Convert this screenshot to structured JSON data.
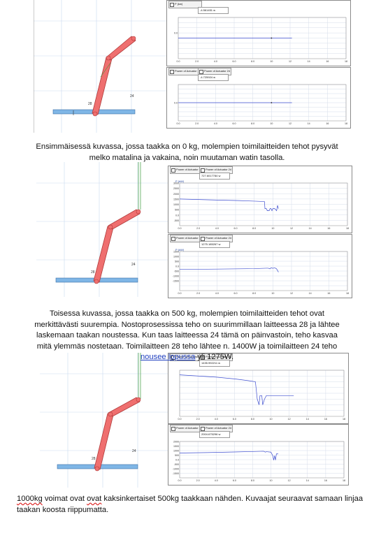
{
  "figures": [
    {
      "mechanism": {
        "labels": {
          "a": "24",
          "b": "28"
        },
        "show_vertical_guide": false,
        "load_kg": 0
      },
      "panels": [
        {
          "tabs": [
            "P (kw)"
          ],
          "value": "-4.561451 w",
          "y_ticks": [
            "",
            "",
            "",
            "0.0",
            "",
            "",
            "",
            ""
          ],
          "x_ticks": [
            "0.0",
            "2.0",
            "4.0",
            "6.0",
            "8.0",
            "10",
            "12",
            "14",
            "16",
            "18"
          ],
          "series": {
            "x": [
              0,
              12.2
            ],
            "y": [
              0,
              0
            ],
            "marker_x": 10
          },
          "ylim": [
            -4,
            4
          ],
          "xlim": [
            0,
            18
          ]
        },
        {
          "tabs": [
            "Power of Actuator 24",
            "Power of Actuator 24"
          ],
          "value": "-4.725924 w",
          "y_ticks": [
            "",
            "",
            "",
            "",
            "0.0",
            "",
            "",
            ""
          ],
          "x_ticks": [
            "0.0",
            "2.0",
            "4.0",
            "6.0",
            "8.0",
            "10",
            "12",
            "14",
            "16",
            "18"
          ],
          "series": {
            "x": [
              0,
              12.2
            ],
            "y": [
              0,
              0
            ],
            "marker_x": 10
          },
          "ylim": [
            -4,
            4
          ],
          "xlim": [
            0,
            18
          ]
        }
      ]
    },
    {
      "mechanism": {
        "labels": {
          "a": "24",
          "b": "28"
        },
        "show_vertical_guide": true,
        "load_kg": 500
      },
      "panels": [
        {
          "tabs": [
            "Power of Actuator 24",
            "Power of Actuator 24"
          ],
          "ylabel": "P (kW)",
          "value": "727.6017784 w",
          "y_ticks": [
            "3000",
            "2500",
            "2000",
            "1500",
            "1000",
            "500",
            "0.0",
            "-500"
          ],
          "x_ticks": [
            "0.0",
            "2.0",
            "4.0",
            "6.0",
            "8.0",
            "10",
            "12",
            "14",
            "16",
            "18"
          ],
          "series": {
            "x": [
              0,
              2,
              4,
              6,
              8,
              9.1,
              9.15,
              9.3,
              9.4,
              9.6,
              9.7,
              9.8,
              9.9,
              10.0,
              10.2,
              10.4,
              10.5,
              10.6
            ],
            "y": [
              1800,
              1750,
              1700,
              1660,
              1600,
              1560,
              900,
              900,
              700,
              700,
              900,
              900,
              700,
              900,
              900,
              700,
              1200,
              900
            ]
          },
          "ylim": [
            -700,
            3300
          ],
          "xlim": [
            0,
            18
          ]
        },
        {
          "tabs": [
            "Power of Actuator 24",
            "Power of Actuator 24"
          ],
          "ylabel": "P (kW)",
          "value": "1275.185267 w",
          "y_ticks": [
            "1500",
            "1000",
            "500",
            "0.0",
            "-500",
            "-1000",
            "-1500",
            ""
          ],
          "x_ticks": [
            "0.0",
            "2.0",
            "4.0",
            "6.0",
            "8.0",
            "10",
            "12",
            "14",
            "16",
            "18"
          ],
          "series": {
            "x": [
              0,
              4,
              8,
              9.3,
              9.5,
              9.7,
              9.8,
              10.0,
              10.2,
              10.4,
              10.6
            ],
            "y": [
              150,
              180,
              220,
              260,
              260,
              200,
              300,
              250,
              300,
              200,
              -100
            ]
          },
          "ylim": [
            -1800,
            1800
          ],
          "xlim": [
            0,
            18
          ]
        }
      ]
    },
    {
      "mechanism": {
        "labels": {
          "a": "24",
          "b": "28"
        },
        "show_vertical_guide": true,
        "load_kg": 1000
      },
      "panels": [
        {
          "tabs": [
            "Power of Actuator 24",
            "Power of Actuator 24"
          ],
          "value": "1435.992211 w",
          "y_ticks": [
            "",
            "",
            "",
            "",
            "",
            "",
            "",
            ""
          ],
          "x_ticks": [
            "0.0",
            "2.0",
            "4.0",
            "6.0",
            "8.0",
            "10",
            "12",
            "14",
            "16",
            "18"
          ],
          "series": {
            "x": [
              0,
              2,
              4,
              6,
              7.5,
              8.3,
              8.5,
              8.7,
              8.8,
              9.0,
              9.1,
              9.3,
              9.5,
              12.5
            ],
            "y": [
              2900,
              2800,
              2700,
              2550,
              2400,
              2300,
              800,
              300,
              1100,
              1100,
              300,
              800,
              1100,
              1100
            ]
          },
          "ylim": [
            -700,
            3300
          ],
          "xlim": [
            0,
            18
          ]
        },
        {
          "tabs": [
            "Power of Actuator 24",
            "Power of Actuator 24"
          ],
          "value": "2004.675296 w",
          "y_ticks": [
            "2000",
            "1500",
            "1000",
            "500",
            "0.0",
            "-500",
            "-1000",
            "-1500"
          ],
          "x_ticks": [
            "0.0",
            "2.0",
            "4.0",
            "6.0",
            "8.0",
            "10",
            "12",
            "14",
            "16",
            "18"
          ],
          "series": {
            "x": [
              0,
              3,
              6,
              8.5,
              9.2,
              9.4,
              9.5,
              10.0,
              10.2,
              10.3,
              10.4,
              10.5,
              10.6,
              10.8
            ],
            "y": [
              1000,
              1050,
              1120,
              1180,
              1200,
              1100,
              1150,
              1100,
              700,
              200,
              700,
              200,
              900,
              900
            ]
          },
          "ylim": [
            -1800,
            2300
          ],
          "xlim": [
            0,
            18
          ]
        }
      ]
    }
  ],
  "paragraphs": {
    "p1": "Ensimmäisessä kuvassa, jossa taakka on 0 kg, molempien toimilaitteiden tehot pysyvät melko matalina ja vakaina, noin muutaman watin tasolla.",
    "p2_a": "Toisessa kuvassa, jossa taakka on 500 kg, molempien toimilaitteiden tehot ovat merkittävästi suurempia. Nostoprosessissa teho on suurimmillaan laitteessa 28 ja lähtee laskemaan taakan noustessa. Kun taas laitteessa 24 tämä on päinvastoin, teho kasvaa mitä ylemmäs nostetaan. Toimilaitteen 28 teho lähtee n. 1400W ja toimilaitteen 24 teho ",
    "p2_link": "nousee  lopussa",
    "p2_b": " yli 1275W.",
    "p3_w1": "1000kg",
    "p3_mid": " voimat ovat ",
    "p3_w2": "ovat",
    "p3_rest": " kaksinkertaiset 500kg taakkaan nähden. Kuvaajat seuraavat samaan linjaa taakan koosta riippumatta."
  },
  "colors": {
    "link": "#2c3fd8",
    "arm": "#ef6f6f",
    "arm_edge": "#b03a3a",
    "base": "#7fb6e6",
    "trace": "#3f4fd0"
  }
}
